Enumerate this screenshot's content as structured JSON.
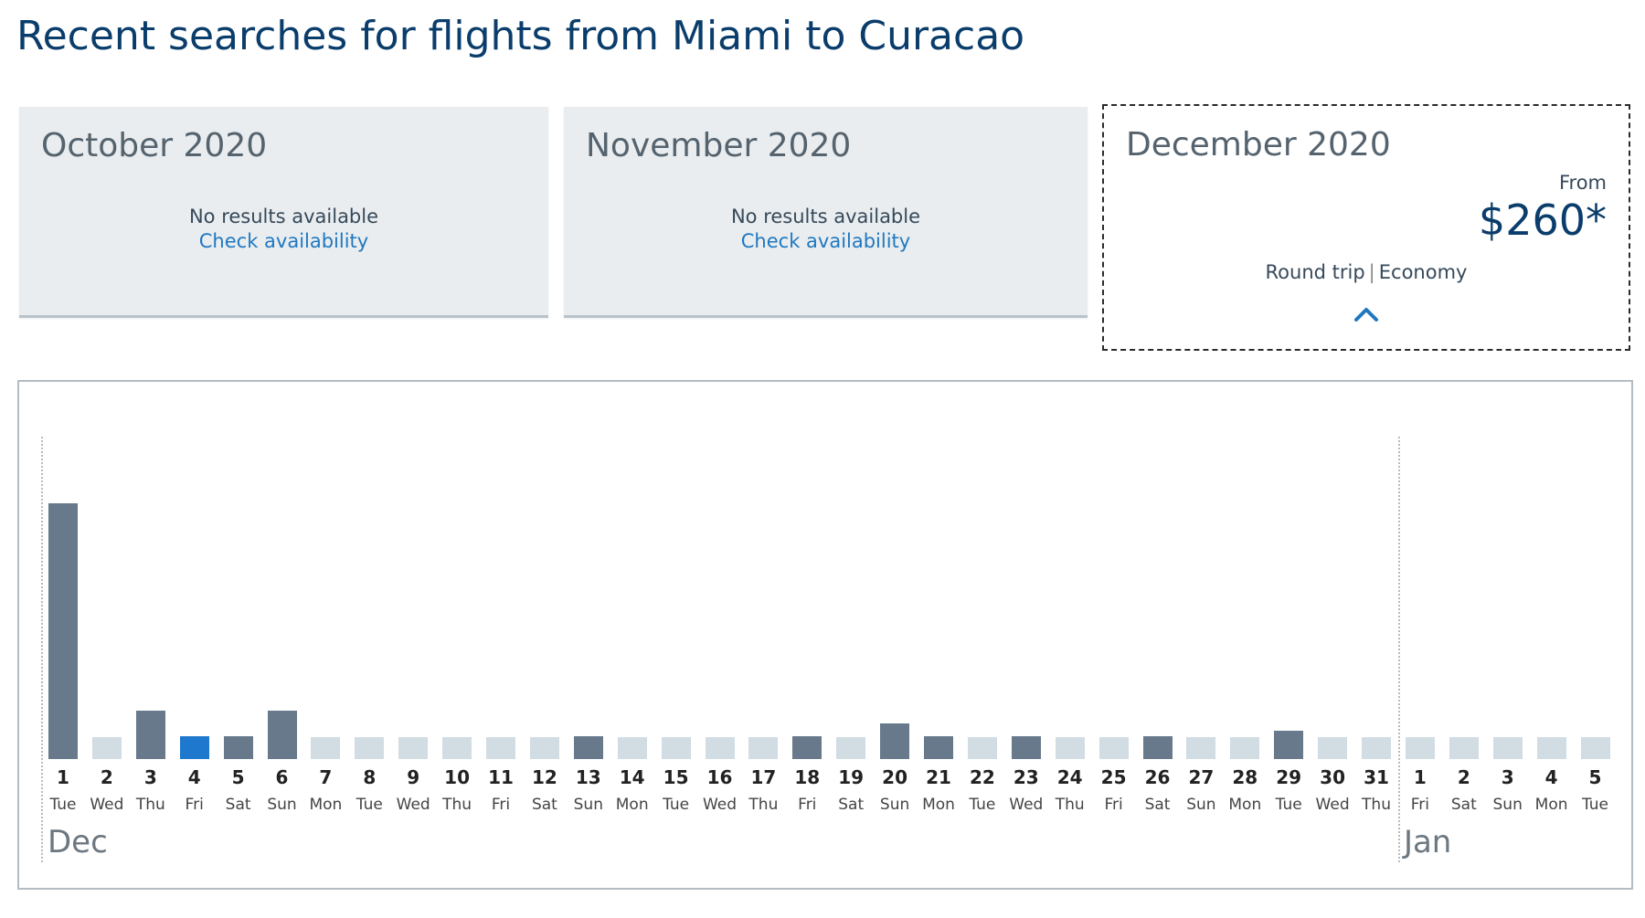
{
  "page": {
    "title": "Recent searches for flights from Miami to Curacao"
  },
  "months": [
    {
      "id": "oct",
      "title": "October 2020",
      "no_results": "No results available",
      "link": "Check availability"
    },
    {
      "id": "nov",
      "title": "November 2020",
      "no_results": "No results available",
      "link": "Check availability"
    },
    {
      "id": "dec",
      "title": "December 2020",
      "from_label": "From",
      "price": "$260*",
      "trip_type": "Round trip",
      "cabin": "Economy",
      "icon": "chevron-up-icon",
      "selected": true
    }
  ],
  "colors": {
    "title": "#0a3d6b",
    "link": "#1f78c1",
    "bar_default": "#67798a",
    "bar_selected": "#1e78cd",
    "bar_empty": "#d1dce3"
  },
  "chart_data": {
    "type": "bar",
    "month_labels": [
      "Dec",
      "Jan"
    ],
    "day_numbers": [
      "1",
      "2",
      "3",
      "4",
      "5",
      "6",
      "7",
      "8",
      "9",
      "10",
      "11",
      "12",
      "13",
      "14",
      "15",
      "16",
      "17",
      "18",
      "19",
      "20",
      "21",
      "22",
      "23",
      "24",
      "25",
      "26",
      "27",
      "28",
      "29",
      "30",
      "31",
      "1",
      "2",
      "3",
      "4",
      "5"
    ],
    "day_names": [
      "Tue",
      "Wed",
      "Thu",
      "Fri",
      "Sat",
      "Sun",
      "Mon",
      "Tue",
      "Wed",
      "Thu",
      "Fri",
      "Sat",
      "Sun",
      "Mon",
      "Tue",
      "Wed",
      "Thu",
      "Fri",
      "Sat",
      "Sun",
      "Mon",
      "Tue",
      "Wed",
      "Thu",
      "Fri",
      "Sat",
      "Sun",
      "Mon",
      "Tue",
      "Wed",
      "Thu",
      "Fri",
      "Sat",
      "Sun",
      "Mon",
      "Tue"
    ],
    "values": [
      100,
      null,
      19,
      9,
      9,
      19,
      null,
      null,
      null,
      null,
      null,
      null,
      9,
      null,
      null,
      null,
      null,
      9,
      null,
      14,
      9,
      null,
      9,
      null,
      null,
      9,
      null,
      null,
      11,
      null,
      null,
      null,
      null,
      null,
      null,
      null
    ],
    "selected_index": 3,
    "y_range": [
      0,
      100
    ]
  }
}
